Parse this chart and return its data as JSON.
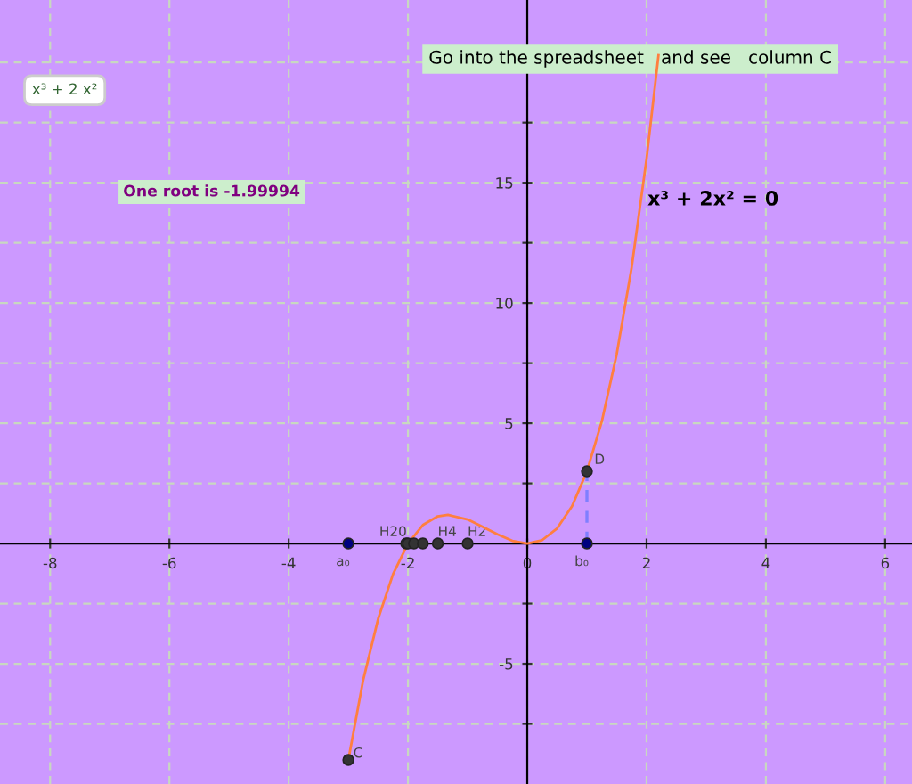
{
  "chart_data": {
    "type": "line",
    "x": [
      -3,
      -2.75,
      -2.5,
      -2.25,
      -2,
      -1.75,
      -1.5,
      -1.33,
      -1,
      -0.75,
      -0.5,
      -0.25,
      0,
      0.25,
      0.5,
      0.75,
      1,
      1.25,
      1.5,
      1.75,
      2,
      2.2
    ],
    "series": [
      {
        "color": "#ff7f3f",
        "values": [
          -9,
          -5.67,
          -3.13,
          -1.27,
          0,
          0.77,
          1.13,
          1.19,
          1,
          0.7,
          0.38,
          0.11,
          0,
          0.14,
          0.63,
          1.55,
          3,
          5.08,
          7.88,
          11.48,
          16,
          20.3
        ]
      },
      {
        "type": "line",
        "color": "#7f7fff",
        "line_style": "dashed",
        "x": [
          1,
          1
        ],
        "values": [
          0,
          3
        ]
      },
      {
        "type": "scatter",
        "color": "#000080",
        "marker": "circle",
        "x": [
          -3,
          1
        ],
        "values": [
          0,
          0
        ]
      },
      {
        "type": "scatter",
        "color": "#333333",
        "marker": "circle",
        "x": [
          -2.03,
          -2,
          -1.9,
          -1.75,
          -1.5,
          -1,
          1,
          -3
        ],
        "values": [
          0,
          0,
          0,
          0,
          0,
          0,
          3,
          -9
        ]
      }
    ],
    "xlim": [
      -8.84,
      6.45
    ],
    "ylim": [
      -10,
      22.6
    ],
    "xticks": [
      -8,
      -6,
      -4,
      -2,
      {
        "value": 0,
        "label": "0"
      },
      2,
      4,
      6
    ],
    "yticks": [
      {
        "value": -7.5,
        "label": null
      },
      -5,
      {
        "value": -2.5,
        "label": null
      },
      {
        "value": 2.5,
        "label": null
      },
      5,
      {
        "value": 7.5,
        "label": null
      },
      10,
      {
        "value": 12.5,
        "label": null
      },
      15,
      {
        "value": 17.5,
        "label": null
      },
      {
        "value": 20,
        "label": null
      }
    ],
    "grid": true,
    "annotations": [
      "x³ + 2 x²",
      "Go into the spreadsheet   and see   column C",
      "One root is -1.99994",
      "x³ + 2x² = 0",
      {
        "text": "D",
        "x": 1,
        "y": 3
      },
      {
        "text": "C",
        "x": -3,
        "y": -9
      },
      {
        "text": "a₀",
        "x": -3,
        "y": 0
      },
      {
        "text": "b₀",
        "x": 1,
        "y": 0
      },
      {
        "text": "H20",
        "x": -1.9,
        "y": 0
      },
      {
        "text": "H4",
        "x": -1.5,
        "y": 0
      },
      {
        "text": "H2",
        "x": -1,
        "y": 0
      }
    ]
  }
}
